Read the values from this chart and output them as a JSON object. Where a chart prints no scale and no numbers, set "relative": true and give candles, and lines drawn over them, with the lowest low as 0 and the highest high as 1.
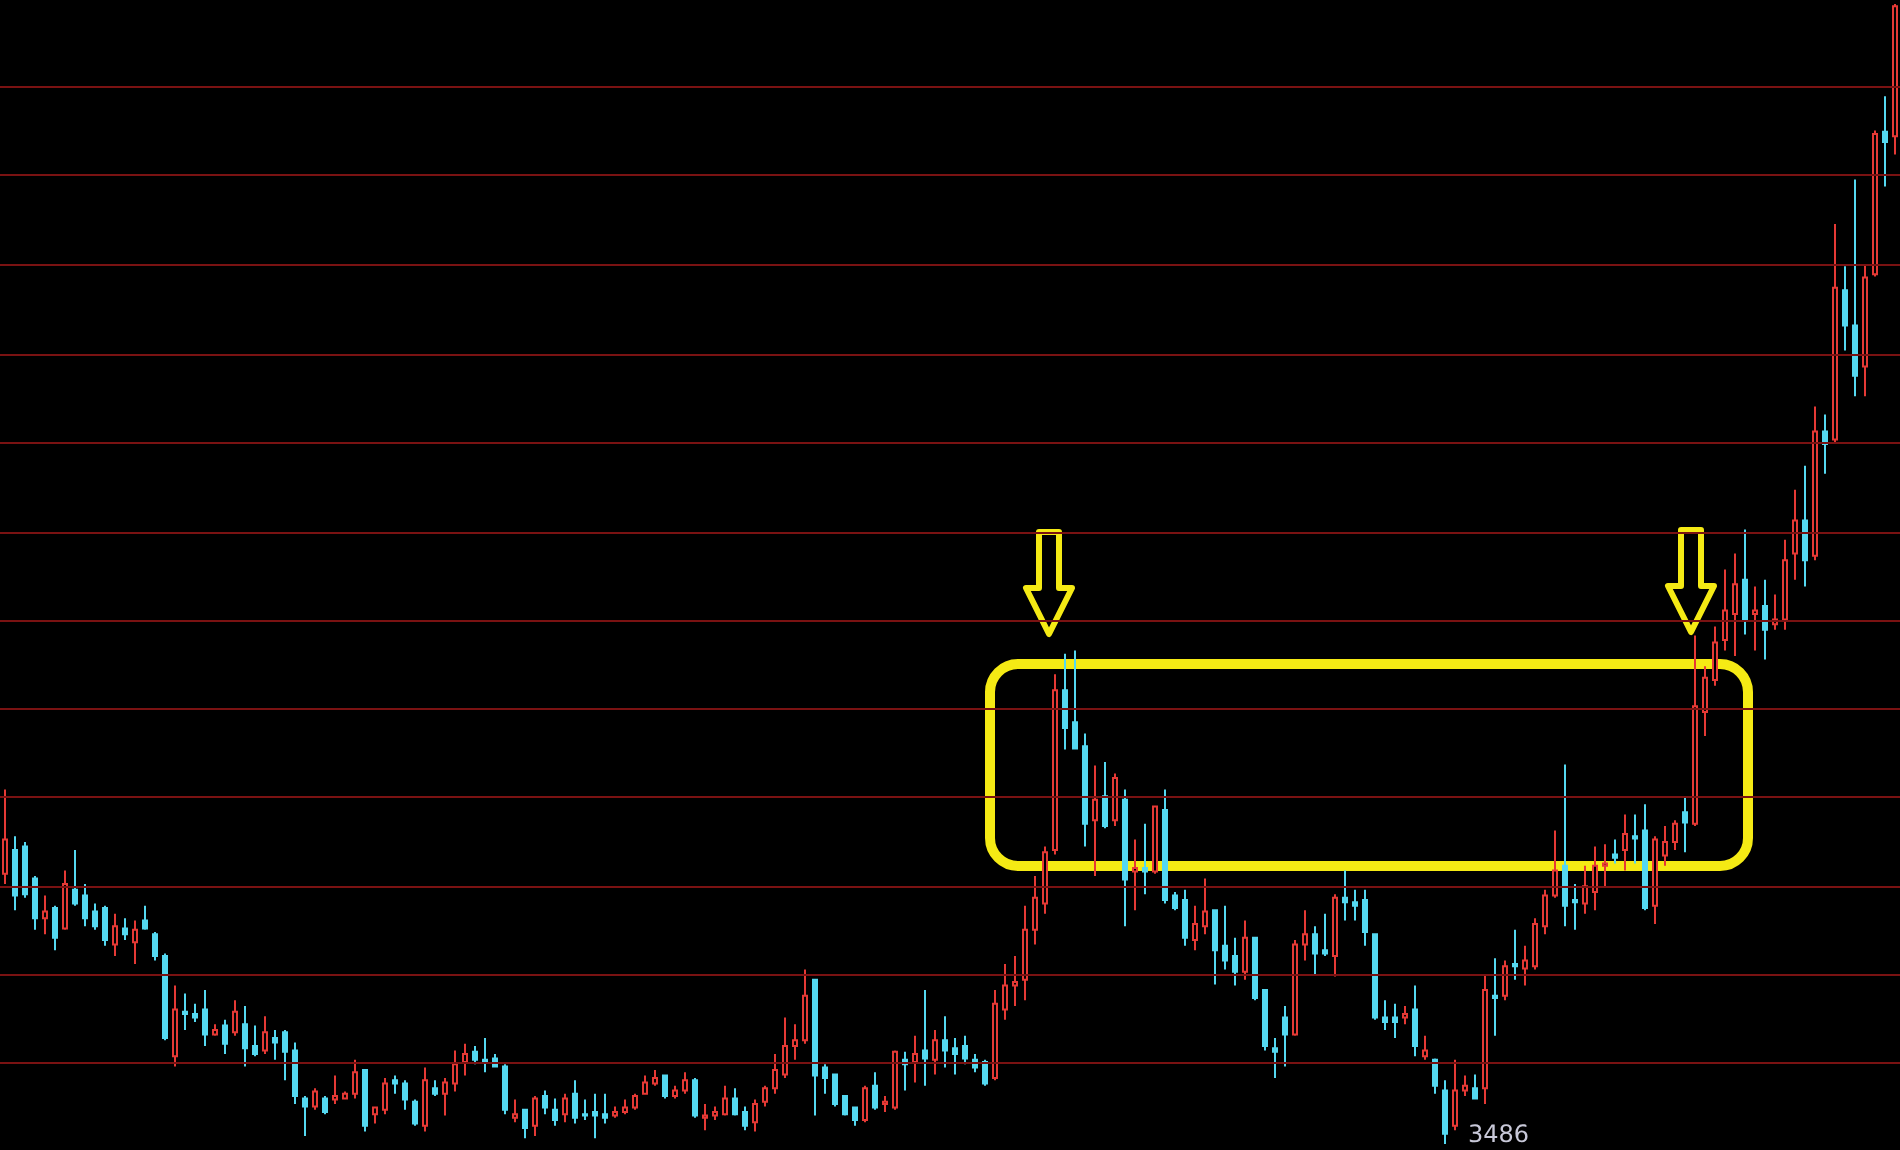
{
  "chart_data": {
    "type": "candlestick",
    "relative": true,
    "tick_labels": false,
    "categories": [
      null,
      null,
      null,
      null,
      null,
      null,
      null,
      null,
      null,
      null,
      null,
      null,
      null,
      null,
      null,
      null,
      null,
      null,
      null,
      null,
      null,
      null,
      null,
      null,
      null,
      null,
      null,
      null,
      null,
      null,
      null,
      null,
      null,
      null,
      null,
      null,
      null,
      null,
      null,
      null,
      null,
      null,
      null,
      null,
      null,
      null,
      null,
      null,
      null,
      null,
      null,
      null,
      null,
      null,
      null,
      null,
      null,
      null,
      null,
      null,
      null,
      null,
      null,
      null,
      null,
      null,
      null,
      null,
      null,
      null,
      null,
      null,
      null,
      null,
      null,
      null,
      null,
      null,
      null,
      null,
      null,
      null,
      null,
      null,
      null,
      null,
      null,
      null,
      null,
      null,
      null,
      null,
      null,
      null,
      null,
      null,
      null,
      null,
      null,
      null,
      null,
      null,
      null,
      null,
      null,
      null,
      null,
      null,
      null,
      null,
      null,
      null,
      null,
      null,
      null,
      null,
      null,
      null,
      null,
      null,
      null,
      null,
      null,
      null,
      null,
      null,
      null,
      null,
      null,
      null,
      null,
      null,
      null,
      null,
      null,
      null,
      null,
      null,
      null,
      null,
      null,
      null,
      null,
      null,
      null,
      null,
      null,
      null,
      null,
      null,
      null,
      null,
      null,
      null,
      null,
      null,
      null,
      null,
      null,
      null,
      null,
      null,
      null,
      null,
      null,
      null,
      null,
      null,
      null,
      null,
      null,
      null,
      null,
      null,
      null,
      null,
      null,
      null,
      null,
      null,
      null,
      null,
      null,
      null,
      null,
      null,
      null,
      null,
      null,
      null
    ],
    "ohlc": [
      [
        0.237,
        0.311,
        0.228,
        0.267
      ],
      [
        0.258,
        0.27,
        0.205,
        0.218
      ],
      [
        0.261,
        0.265,
        0.216,
        0.219
      ],
      [
        0.233,
        0.235,
        0.188,
        0.198
      ],
      [
        0.198,
        0.218,
        0.184,
        0.204
      ],
      [
        0.207,
        0.209,
        0.17,
        0.181
      ],
      [
        0.189,
        0.24,
        0.188,
        0.228
      ],
      [
        0.223,
        0.258,
        0.209,
        0.211
      ],
      [
        0.218,
        0.228,
        0.191,
        0.198
      ],
      [
        0.204,
        0.211,
        0.188,
        0.191
      ],
      [
        0.207,
        0.209,
        0.174,
        0.179
      ],
      [
        0.175,
        0.202,
        0.165,
        0.191
      ],
      [
        0.189,
        0.198,
        0.179,
        0.184
      ],
      [
        0.177,
        0.196,
        0.158,
        0.188
      ],
      [
        0.196,
        0.209,
        0.188,
        0.189
      ],
      [
        0.184,
        0.186,
        0.161,
        0.165
      ],
      [
        0.165,
        0.167,
        0.091,
        0.093
      ],
      [
        0.077,
        0.139,
        0.068,
        0.118
      ],
      [
        0.116,
        0.132,
        0.1,
        0.114
      ],
      [
        0.114,
        0.123,
        0.107,
        0.111
      ],
      [
        0.118,
        0.135,
        0.086,
        0.096
      ],
      [
        0.096,
        0.105,
        0.095,
        0.1
      ],
      [
        0.104,
        0.109,
        0.079,
        0.088
      ],
      [
        0.098,
        0.126,
        0.095,
        0.116
      ],
      [
        0.105,
        0.121,
        0.068,
        0.084
      ],
      [
        0.086,
        0.104,
        0.077,
        0.079
      ],
      [
        0.082,
        0.112,
        0.079,
        0.098
      ],
      [
        0.093,
        0.1,
        0.074,
        0.089
      ],
      [
        0.098,
        0.1,
        0.056,
        0.081
      ],
      [
        0.082,
        0.089,
        0.035,
        0.042
      ],
      [
        0.04,
        0.042,
        0.007,
        0.033
      ],
      [
        0.033,
        0.049,
        0.03,
        0.046
      ],
      [
        0.04,
        0.042,
        0.026,
        0.028
      ],
      [
        0.039,
        0.06,
        0.035,
        0.042
      ],
      [
        0.04,
        0.046,
        0.039,
        0.044
      ],
      [
        0.044,
        0.074,
        0.04,
        0.063
      ],
      [
        0.065,
        0.065,
        0.011,
        0.016
      ],
      [
        0.026,
        0.033,
        0.018,
        0.032
      ],
      [
        0.03,
        0.058,
        0.026,
        0.053
      ],
      [
        0.056,
        0.06,
        0.044,
        0.053
      ],
      [
        0.053,
        0.056,
        0.03,
        0.039
      ],
      [
        0.037,
        0.039,
        0.016,
        0.018
      ],
      [
        0.016,
        0.067,
        0.011,
        0.056
      ],
      [
        0.049,
        0.056,
        0.042,
        0.044
      ],
      [
        0.044,
        0.058,
        0.025,
        0.054
      ],
      [
        0.053,
        0.082,
        0.046,
        0.07
      ],
      [
        0.072,
        0.088,
        0.06,
        0.079
      ],
      [
        0.081,
        0.086,
        0.07,
        0.074
      ],
      [
        0.074,
        0.093,
        0.063,
        0.072
      ],
      [
        0.075,
        0.079,
        0.068,
        0.068
      ],
      [
        0.068,
        0.07,
        0.026,
        0.03
      ],
      [
        0.023,
        0.039,
        0.019,
        0.026
      ],
      [
        0.03,
        0.03,
        0.005,
        0.014
      ],
      [
        0.016,
        0.042,
        0.007,
        0.04
      ],
      [
        0.042,
        0.047,
        0.026,
        0.032
      ],
      [
        0.03,
        0.04,
        0.016,
        0.021
      ],
      [
        0.026,
        0.044,
        0.019,
        0.04
      ],
      [
        0.044,
        0.056,
        0.018,
        0.023
      ],
      [
        0.026,
        0.039,
        0.021,
        0.025
      ],
      [
        0.028,
        0.044,
        0.005,
        0.025
      ],
      [
        0.026,
        0.044,
        0.018,
        0.023
      ],
      [
        0.025,
        0.033,
        0.023,
        0.028
      ],
      [
        0.028,
        0.039,
        0.026,
        0.032
      ],
      [
        0.032,
        0.044,
        0.03,
        0.042
      ],
      [
        0.044,
        0.06,
        0.044,
        0.054
      ],
      [
        0.053,
        0.065,
        0.051,
        0.058
      ],
      [
        0.06,
        0.061,
        0.04,
        0.042
      ],
      [
        0.042,
        0.051,
        0.04,
        0.047
      ],
      [
        0.047,
        0.063,
        0.044,
        0.056
      ],
      [
        0.056,
        0.058,
        0.023,
        0.025
      ],
      [
        0.023,
        0.035,
        0.012,
        0.025
      ],
      [
        0.025,
        0.033,
        0.021,
        0.028
      ],
      [
        0.026,
        0.051,
        0.025,
        0.04
      ],
      [
        0.04,
        0.049,
        0.025,
        0.026
      ],
      [
        0.028,
        0.033,
        0.012,
        0.016
      ],
      [
        0.019,
        0.039,
        0.011,
        0.035
      ],
      [
        0.037,
        0.051,
        0.033,
        0.049
      ],
      [
        0.049,
        0.079,
        0.044,
        0.065
      ],
      [
        0.061,
        0.111,
        0.058,
        0.086
      ],
      [
        0.086,
        0.105,
        0.074,
        0.091
      ],
      [
        0.091,
        0.153,
        0.088,
        0.13
      ],
      [
        0.144,
        0.144,
        0.025,
        0.06
      ],
      [
        0.067,
        0.07,
        0.044,
        0.058
      ],
      [
        0.061,
        0.061,
        0.033,
        0.035
      ],
      [
        0.042,
        0.042,
        0.025,
        0.026
      ],
      [
        0.032,
        0.033,
        0.016,
        0.021
      ],
      [
        0.021,
        0.051,
        0.019,
        0.049
      ],
      [
        0.051,
        0.063,
        0.03,
        0.032
      ],
      [
        0.035,
        0.042,
        0.028,
        0.037
      ],
      [
        0.032,
        0.082,
        0.03,
        0.081
      ],
      [
        0.074,
        0.081,
        0.047,
        0.07
      ],
      [
        0.072,
        0.095,
        0.054,
        0.079
      ],
      [
        0.082,
        0.135,
        0.051,
        0.075
      ],
      [
        0.074,
        0.1,
        0.061,
        0.091
      ],
      [
        0.091,
        0.112,
        0.067,
        0.082
      ],
      [
        0.084,
        0.093,
        0.061,
        0.079
      ],
      [
        0.086,
        0.095,
        0.07,
        0.075
      ],
      [
        0.074,
        0.079,
        0.063,
        0.067
      ],
      [
        0.072,
        0.074,
        0.051,
        0.053
      ],
      [
        0.058,
        0.135,
        0.056,
        0.123
      ],
      [
        0.118,
        0.158,
        0.109,
        0.139
      ],
      [
        0.139,
        0.165,
        0.121,
        0.142
      ],
      [
        0.144,
        0.209,
        0.126,
        0.188
      ],
      [
        0.188,
        0.235,
        0.175,
        0.216
      ],
      [
        0.211,
        0.261,
        0.202,
        0.256
      ],
      [
        0.258,
        0.412,
        0.254,
        0.398
      ],
      [
        0.398,
        0.43,
        0.346,
        0.365
      ],
      [
        0.37,
        0.433,
        0.346,
        0.347
      ],
      [
        0.349,
        0.36,
        0.261,
        0.281
      ],
      [
        0.284,
        0.332,
        0.235,
        0.302
      ],
      [
        0.305,
        0.335,
        0.277,
        0.279
      ],
      [
        0.284,
        0.325,
        0.279,
        0.321
      ],
      [
        0.302,
        0.311,
        0.191,
        0.232
      ],
      [
        0.239,
        0.267,
        0.205,
        0.242
      ],
      [
        0.242,
        0.281,
        0.219,
        0.239
      ],
      [
        0.239,
        0.296,
        0.237,
        0.296
      ],
      [
        0.293,
        0.311,
        0.211,
        0.214
      ],
      [
        0.218,
        0.221,
        0.205,
        0.207
      ],
      [
        0.214,
        0.223,
        0.174,
        0.181
      ],
      [
        0.179,
        0.209,
        0.17,
        0.193
      ],
      [
        0.191,
        0.233,
        0.184,
        0.204
      ],
      [
        0.205,
        0.205,
        0.14,
        0.17
      ],
      [
        0.174,
        0.209,
        0.153,
        0.161
      ],
      [
        0.165,
        0.181,
        0.139,
        0.151
      ],
      [
        0.151,
        0.196,
        0.144,
        0.181
      ],
      [
        0.181,
        0.181,
        0.126,
        0.128
      ],
      [
        0.135,
        0.135,
        0.082,
        0.086
      ],
      [
        0.084,
        0.093,
        0.058,
        0.081
      ],
      [
        0.111,
        0.121,
        0.068,
        0.096
      ],
      [
        0.096,
        0.179,
        0.095,
        0.175
      ],
      [
        0.175,
        0.205,
        0.161,
        0.184
      ],
      [
        0.184,
        0.191,
        0.149,
        0.167
      ],
      [
        0.17,
        0.202,
        0.165,
        0.167
      ],
      [
        0.165,
        0.219,
        0.147,
        0.216
      ],
      [
        0.216,
        0.24,
        0.196,
        0.212
      ],
      [
        0.212,
        0.223,
        0.196,
        0.209
      ],
      [
        0.214,
        0.223,
        0.174,
        0.186
      ],
      [
        0.184,
        0.184,
        0.109,
        0.111
      ],
      [
        0.111,
        0.126,
        0.1,
        0.107
      ],
      [
        0.111,
        0.123,
        0.093,
        0.107
      ],
      [
        0.111,
        0.121,
        0.105,
        0.114
      ],
      [
        0.118,
        0.139,
        0.077,
        0.086
      ],
      [
        0.077,
        0.095,
        0.074,
        0.082
      ],
      [
        0.074,
        0.075,
        0.044,
        0.051
      ],
      [
        0.047,
        0.056,
        0,
        0.009
      ],
      [
        0.016,
        0.074,
        0.012,
        0.047
      ],
      [
        0.047,
        0.06,
        0.042,
        0.051
      ],
      [
        0.049,
        0.061,
        0.039,
        0.04
      ],
      [
        0.049,
        0.149,
        0.035,
        0.135
      ],
      [
        0.13,
        0.163,
        0.095,
        0.128
      ],
      [
        0.13,
        0.161,
        0.126,
        0.156
      ],
      [
        0.158,
        0.188,
        0.144,
        0.156
      ],
      [
        0.154,
        0.174,
        0.139,
        0.161
      ],
      [
        0.156,
        0.198,
        0.153,
        0.193
      ],
      [
        0.191,
        0.223,
        0.184,
        0.218
      ],
      [
        0.218,
        0.275,
        0.216,
        0.24
      ],
      [
        0.244,
        0.333,
        0.191,
        0.209
      ],
      [
        0.214,
        0.228,
        0.188,
        0.212
      ],
      [
        0.211,
        0.244,
        0.202,
        0.226
      ],
      [
        0.221,
        0.261,
        0.205,
        0.244
      ],
      [
        0.244,
        0.263,
        0.226,
        0.246
      ],
      [
        0.254,
        0.267,
        0.246,
        0.251
      ],
      [
        0.258,
        0.289,
        0.24,
        0.272
      ],
      [
        0.27,
        0.289,
        0.246,
        0.268
      ],
      [
        0.275,
        0.298,
        0.205,
        0.207
      ],
      [
        0.209,
        0.27,
        0.193,
        0.267
      ],
      [
        0.253,
        0.279,
        0.244,
        0.265
      ],
      [
        0.265,
        0.284,
        0.258,
        0.281
      ],
      [
        0.291,
        0.304,
        0.256,
        0.282
      ],
      [
        0.281,
        0.446,
        0.279,
        0.384
      ],
      [
        0.379,
        0.419,
        0.358,
        0.409
      ],
      [
        0.407,
        0.454,
        0.402,
        0.44
      ],
      [
        0.442,
        0.504,
        0.433,
        0.468
      ],
      [
        0.465,
        0.518,
        0.428,
        0.491
      ],
      [
        0.495,
        0.539,
        0.447,
        0.46
      ],
      [
        0.465,
        0.489,
        0.433,
        0.468
      ],
      [
        0.472,
        0.495,
        0.425,
        0.451
      ],
      [
        0.456,
        0.482,
        0.451,
        0.46
      ],
      [
        0.46,
        0.53,
        0.451,
        0.512
      ],
      [
        0.518,
        0.574,
        0.495,
        0.547
      ],
      [
        0.547,
        0.595,
        0.489,
        0.512
      ],
      [
        0.516,
        0.647,
        0.512,
        0.625
      ],
      [
        0.625,
        0.64,
        0.588,
        0.614
      ],
      [
        0.618,
        0.807,
        0.614,
        0.751
      ],
      [
        0.749,
        0.77,
        0.696,
        0.718
      ],
      [
        0.718,
        0.846,
        0.656,
        0.674
      ],
      [
        0.682,
        0.772,
        0.656,
        0.76
      ],
      [
        0.763,
        0.889,
        0.761,
        0.886
      ],
      [
        0.888,
        0.919,
        0.84,
        0.879
      ],
      [
        0.884,
        1,
        0.868,
        0.998
      ]
    ],
    "colors": [
      "#e53935",
      "#54d8f0",
      "#54d8f0",
      "#54d8f0",
      "#e53935",
      "#54d8f0",
      "#e53935",
      "#54d8f0",
      "#54d8f0",
      "#54d8f0",
      "#54d8f0",
      "#e53935",
      "#54d8f0",
      "#e53935",
      "#54d8f0",
      "#54d8f0",
      "#54d8f0",
      "#e53935",
      "#54d8f0",
      "#54d8f0",
      "#54d8f0",
      "#e53935",
      "#54d8f0",
      "#e53935",
      "#54d8f0",
      "#54d8f0",
      "#e53935",
      "#54d8f0",
      "#54d8f0",
      "#54d8f0",
      "#54d8f0",
      "#e53935",
      "#54d8f0",
      "#e53935",
      "#e53935",
      "#e53935",
      "#54d8f0",
      "#e53935",
      "#e53935",
      "#54d8f0",
      "#54d8f0",
      "#54d8f0",
      "#e53935",
      "#54d8f0",
      "#e53935",
      "#e53935",
      "#e53935",
      "#54d8f0",
      "#54d8f0",
      "#54d8f0",
      "#54d8f0",
      "#e53935",
      "#54d8f0",
      "#e53935",
      "#54d8f0",
      "#54d8f0",
      "#e53935",
      "#54d8f0",
      "#54d8f0",
      "#54d8f0",
      "#54d8f0",
      "#e53935",
      "#e53935",
      "#e53935",
      "#e53935",
      "#e53935",
      "#54d8f0",
      "#e53935",
      "#e53935",
      "#54d8f0",
      "#e53935",
      "#e53935",
      "#e53935",
      "#54d8f0",
      "#54d8f0",
      "#e53935",
      "#e53935",
      "#e53935",
      "#e53935",
      "#e53935",
      "#e53935",
      "#54d8f0",
      "#54d8f0",
      "#54d8f0",
      "#54d8f0",
      "#54d8f0",
      "#e53935",
      "#54d8f0",
      "#e53935",
      "#e53935",
      "#54d8f0",
      "#e53935",
      "#54d8f0",
      "#e53935",
      "#54d8f0",
      "#54d8f0",
      "#54d8f0",
      "#54d8f0",
      "#54d8f0",
      "#e53935",
      "#e53935",
      "#e53935",
      "#e53935",
      "#e53935",
      "#e53935",
      "#e53935",
      "#54d8f0",
      "#54d8f0",
      "#54d8f0",
      "#e53935",
      "#54d8f0",
      "#e53935",
      "#54d8f0",
      "#e53935",
      "#54d8f0",
      "#e53935",
      "#54d8f0",
      "#54d8f0",
      "#54d8f0",
      "#e53935",
      "#e53935",
      "#54d8f0",
      "#54d8f0",
      "#54d8f0",
      "#e53935",
      "#54d8f0",
      "#54d8f0",
      "#54d8f0",
      "#54d8f0",
      "#e53935",
      "#e53935",
      "#54d8f0",
      "#54d8f0",
      "#e53935",
      "#54d8f0",
      "#54d8f0",
      "#54d8f0",
      "#54d8f0",
      "#54d8f0",
      "#54d8f0",
      "#e53935",
      "#54d8f0",
      "#e53935",
      "#54d8f0",
      "#54d8f0",
      "#e53935",
      "#e53935",
      "#54d8f0",
      "#e53935",
      "#54d8f0",
      "#e53935",
      "#54d8f0",
      "#e53935",
      "#e53935",
      "#e53935",
      "#e53935",
      "#54d8f0",
      "#54d8f0",
      "#e53935",
      "#e53935",
      "#e53935",
      "#54d8f0",
      "#e53935",
      "#54d8f0",
      "#54d8f0",
      "#e53935",
      "#e53935",
      "#e53935",
      "#54d8f0",
      "#e53935",
      "#e53935",
      "#e53935",
      "#e53935",
      "#e53935",
      "#54d8f0",
      "#e53935",
      "#54d8f0",
      "#e53935",
      "#e53935",
      "#e53935",
      "#54d8f0",
      "#e53935",
      "#54d8f0",
      "#e53935",
      "#54d8f0",
      "#54d8f0",
      "#e53935",
      "#e53935",
      "#54d8f0",
      "#e53935"
    ],
    "ref_lines": [
      {
        "axis": "y",
        "value": 0.928,
        "color": "#7a1212"
      },
      {
        "axis": "y",
        "value": 0.851,
        "color": "#7a1212"
      },
      {
        "axis": "y",
        "value": 0.772,
        "color": "#7a1212"
      },
      {
        "axis": "y",
        "value": 0.693,
        "color": "#7a1212"
      },
      {
        "axis": "y",
        "value": 0.616,
        "color": "#7a1212"
      },
      {
        "axis": "y",
        "value": 0.537,
        "color": "#7a1212"
      },
      {
        "axis": "y",
        "value": 0.46,
        "color": "#7a1212"
      },
      {
        "axis": "y",
        "value": 0.382,
        "color": "#7a1212"
      },
      {
        "axis": "y",
        "value": 0.305,
        "color": "#7a1212"
      },
      {
        "axis": "y",
        "value": 0.226,
        "color": "#7a1212"
      },
      {
        "axis": "y",
        "value": 0.149,
        "color": "#7a1212"
      },
      {
        "axis": "y",
        "value": 0.072,
        "color": "#7a1212"
      }
    ],
    "annotations": [
      "3486"
    ]
  }
}
